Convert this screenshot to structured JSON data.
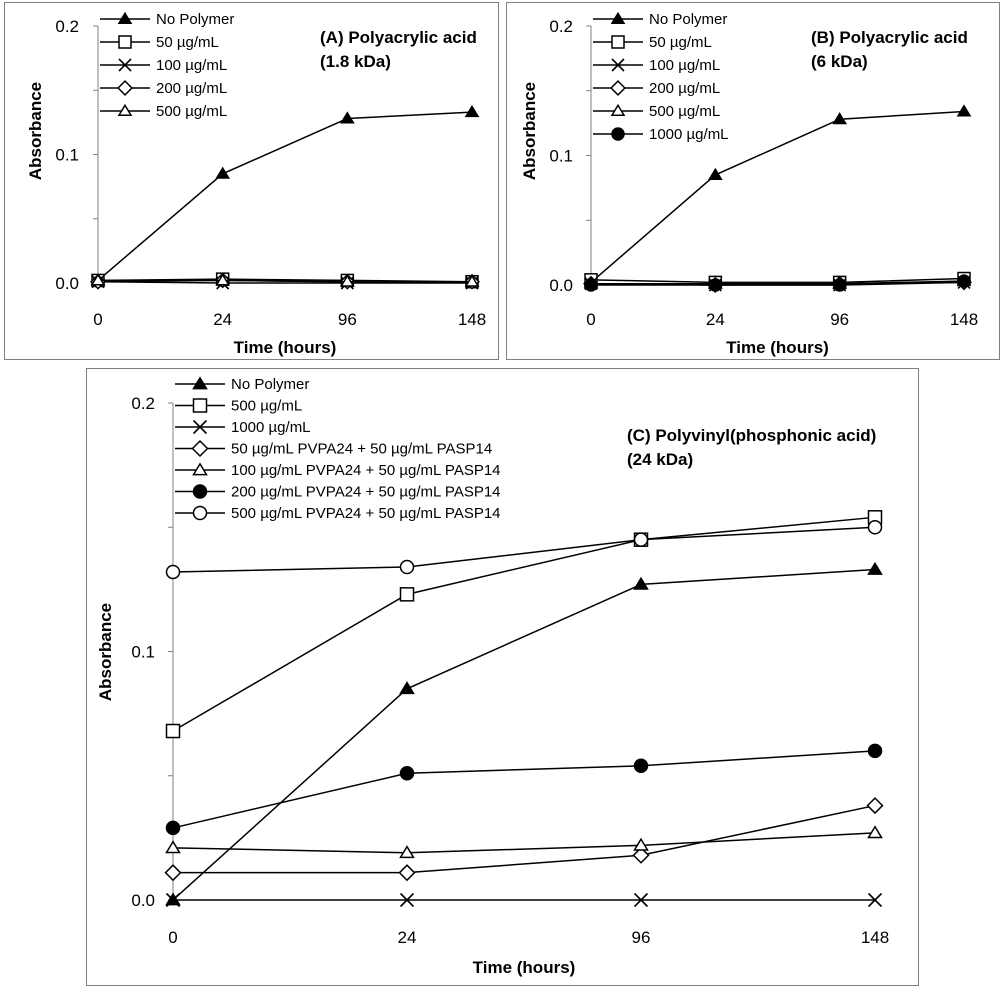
{
  "chart_data": [
    {
      "type": "line",
      "title": "(A) Polyacrylic acid",
      "subtitle": "(1.8 kDa)",
      "xlabel": "Time (hours)",
      "ylabel": "Absorbance",
      "categories": [
        "0",
        "24",
        "96",
        "148"
      ],
      "ylim": [
        0,
        0.2
      ],
      "yticks": [
        "0.0",
        "0.1",
        "0.2"
      ],
      "legend_position": "top-left",
      "series": [
        {
          "name": "No Polymer",
          "marker": "triangle-filled",
          "values": [
            0.002,
            0.085,
            0.128,
            0.133
          ]
        },
        {
          "name": "50 µg/mL",
          "marker": "square-open",
          "values": [
            0.002,
            0.003,
            0.002,
            0.001
          ]
        },
        {
          "name": "100 µg/mL",
          "marker": "x",
          "values": [
            0.001,
            0.0,
            0.0,
            0.0
          ]
        },
        {
          "name": "200 µg/mL",
          "marker": "diamond-open",
          "values": [
            0.001,
            0.002,
            0.001,
            0.001
          ]
        },
        {
          "name": "500 µg/mL",
          "marker": "triangle-open",
          "values": [
            0.002,
            0.002,
            0.001,
            0.001
          ]
        }
      ]
    },
    {
      "type": "line",
      "title": "(B) Polyacrylic acid",
      "subtitle": "(6 kDa)",
      "xlabel": "Time (hours)",
      "ylabel": "Absorbance",
      "categories": [
        "0",
        "24",
        "96",
        "148"
      ],
      "ylim": [
        0,
        0.2
      ],
      "yticks": [
        "0.0",
        "0.1",
        "0.2"
      ],
      "legend_position": "top-left",
      "series": [
        {
          "name": "No Polymer",
          "marker": "triangle-filled",
          "values": [
            0.002,
            0.085,
            0.128,
            0.134
          ]
        },
        {
          "name": "50 µg/mL",
          "marker": "square-open",
          "values": [
            0.004,
            0.002,
            0.002,
            0.005
          ]
        },
        {
          "name": "100 µg/mL",
          "marker": "x",
          "values": [
            0.001,
            0.0,
            0.0,
            0.002
          ]
        },
        {
          "name": "200 µg/mL",
          "marker": "diamond-open",
          "values": [
            0.001,
            0.0,
            0.001,
            0.002
          ]
        },
        {
          "name": "500 µg/mL",
          "marker": "triangle-open",
          "values": [
            0.001,
            0.001,
            0.001,
            0.003
          ]
        },
        {
          "name": "1000 µg/mL",
          "marker": "circle-filled",
          "values": [
            0.0,
            0.0,
            0.0,
            0.003
          ]
        }
      ]
    },
    {
      "type": "line",
      "title": "(C) Polyvinyl(phosphonic acid)",
      "subtitle": "(24 kDa)",
      "xlabel": "Time (hours)",
      "ylabel": "Absorbance",
      "categories": [
        "0",
        "24",
        "96",
        "148"
      ],
      "ylim": [
        0,
        0.2
      ],
      "yticks": [
        "0.0",
        "0.1",
        "0.2"
      ],
      "legend_position": "top-left",
      "series": [
        {
          "name": "No Polymer",
          "marker": "triangle-filled",
          "values": [
            0.0,
            0.085,
            0.127,
            0.133
          ]
        },
        {
          "name": "500 µg/mL",
          "marker": "square-open",
          "values": [
            0.068,
            0.123,
            0.145,
            0.154
          ]
        },
        {
          "name": "1000 µg/mL",
          "marker": "x",
          "values": [
            0.0,
            0.0,
            0.0,
            0.0
          ]
        },
        {
          "name": "50 µg/mL PVPA24 + 50 µg/mL PASP14",
          "marker": "diamond-open",
          "values": [
            0.011,
            0.011,
            0.018,
            0.038
          ]
        },
        {
          "name": "100 µg/mL PVPA24 + 50 µg/mL PASP14",
          "marker": "triangle-open",
          "values": [
            0.021,
            0.019,
            0.022,
            0.027
          ]
        },
        {
          "name": "200 µg/mL PVPA24 + 50 µg/mL PASP14",
          "marker": "circle-filled",
          "values": [
            0.029,
            0.051,
            0.054,
            0.06
          ]
        },
        {
          "name": "500 µg/mL PVPA24 + 50 µg/mL PASP14",
          "marker": "circle-open",
          "values": [
            0.132,
            0.134,
            0.145,
            0.15
          ]
        }
      ]
    }
  ]
}
